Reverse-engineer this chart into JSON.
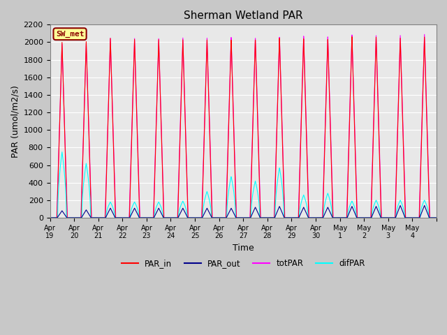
{
  "title": "Sherman Wetland PAR",
  "xlabel": "Time",
  "ylabel": "PAR (umol/m2/s)",
  "ylim": [
    0,
    2200
  ],
  "yticks": [
    0,
    200,
    400,
    600,
    800,
    1000,
    1200,
    1400,
    1600,
    1800,
    2000,
    2200
  ],
  "background_color": "#e8e8e8",
  "grid_color": "#ffffff",
  "legend_labels": [
    "PAR_in",
    "PAR_out",
    "totPAR",
    "difPAR"
  ],
  "legend_colors": [
    "#ff0000",
    "#00008b",
    "#ff00ff",
    "#00ffff"
  ],
  "station_label": "SW_met",
  "station_label_fgcolor": "#8b0000",
  "station_label_bgcolor": "#ffff99",
  "n_days": 16,
  "points_per_day": 288,
  "date_labels": [
    "Apr 19",
    "Apr 20",
    "Apr 21",
    "Apr 22",
    "Apr 23",
    "Apr 24",
    "Apr 25",
    "Apr 26",
    "Apr 27",
    "Apr 28",
    "Apr 29",
    "Apr 30",
    "May 1",
    "May 2",
    "May 3",
    "May 4"
  ],
  "par_in_peaks": [
    2000,
    2010,
    2050,
    2040,
    2040,
    2040,
    2040,
    2040,
    2040,
    2060,
    2050,
    2040,
    2070,
    2060,
    2050,
    2060
  ],
  "par_out_peaks": [
    80,
    90,
    110,
    110,
    110,
    110,
    110,
    110,
    120,
    130,
    120,
    120,
    130,
    130,
    140,
    140
  ],
  "tot_par_peaks": [
    1980,
    1990,
    2050,
    2050,
    2050,
    2060,
    2060,
    2070,
    2060,
    2070,
    2080,
    2070,
    2090,
    2080,
    2080,
    2090
  ],
  "dif_par_peaks": [
    750,
    620,
    180,
    180,
    180,
    190,
    300,
    470,
    420,
    570,
    260,
    280,
    190,
    200,
    200,
    200
  ],
  "line_width": 0.8,
  "figwidth": 6.4,
  "figheight": 4.8,
  "dpi": 100
}
